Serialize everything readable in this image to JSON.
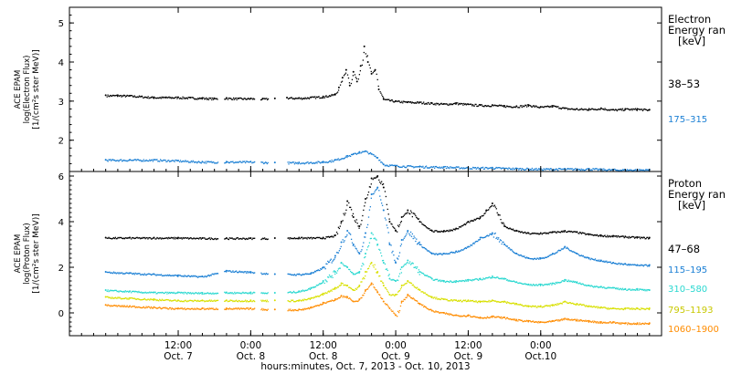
{
  "chart_data": [
    {
      "type": "scatter",
      "panel": "electron",
      "ylabel": [
        "ACE EPAM",
        "log(Electron Flux)",
        "[1/(cm²s ster MeV)]"
      ],
      "ylim": [
        1.2,
        5.4
      ],
      "yticks": [
        2,
        3,
        4,
        5
      ],
      "legend_title": [
        "Electron",
        "Energy ran",
        "[keV]"
      ],
      "series": [
        {
          "name": "38–53",
          "color": "#000000",
          "x": [
            0,
            2,
            4,
            6,
            8,
            10,
            12,
            14,
            16,
            18,
            20,
            22,
            24,
            26,
            28,
            30,
            32,
            34,
            36,
            38,
            38.6,
            39.2,
            39.8,
            40.4,
            41,
            41.6,
            42.2,
            42.8,
            43.4,
            44,
            44.6,
            45.2,
            46,
            48,
            50,
            52,
            54,
            56,
            58,
            60,
            62,
            64,
            66,
            68,
            70,
            72,
            74,
            76,
            78,
            80,
            82,
            84,
            86,
            88,
            90
          ],
          "y": [
            3.15,
            3.15,
            3.14,
            3.12,
            3.1,
            3.1,
            3.1,
            3.09,
            3.08,
            3.07,
            3.08,
            3.07,
            3.07,
            3.06,
            3.07,
            3.09,
            3.08,
            3.1,
            3.12,
            3.18,
            3.35,
            3.6,
            3.8,
            3.4,
            3.75,
            3.5,
            3.9,
            4.4,
            4.0,
            3.7,
            3.8,
            3.3,
            3.05,
            3.0,
            2.98,
            2.97,
            2.95,
            2.93,
            2.95,
            2.92,
            2.9,
            2.9,
            2.88,
            2.87,
            2.9,
            2.85,
            2.88,
            2.82,
            2.8,
            2.8,
            2.82,
            2.78,
            2.8,
            2.8,
            2.78
          ]
        },
        {
          "name": "175–315",
          "color": "#1a7fd4",
          "x": [
            0,
            4,
            8,
            12,
            16,
            20,
            24,
            28,
            32,
            36,
            38,
            40,
            41,
            42,
            43,
            44,
            45,
            46,
            48,
            52,
            56,
            60,
            64,
            68,
            72,
            76,
            80,
            84,
            88,
            90
          ],
          "y": [
            1.5,
            1.5,
            1.5,
            1.48,
            1.45,
            1.45,
            1.45,
            1.43,
            1.43,
            1.45,
            1.5,
            1.6,
            1.65,
            1.7,
            1.72,
            1.65,
            1.55,
            1.38,
            1.35,
            1.33,
            1.32,
            1.3,
            1.3,
            1.28,
            1.27,
            1.27,
            1.27,
            1.25,
            1.25,
            1.25
          ]
        }
      ]
    },
    {
      "type": "scatter",
      "panel": "proton",
      "ylabel": [
        "ACE EPAM",
        "log(Proton Flux)",
        "[1/(cm²s ster MeV)]"
      ],
      "ylim": [
        -1,
        6.2
      ],
      "yticks": [
        0,
        2,
        4,
        6
      ],
      "xticks": [
        "12:00",
        "0:00",
        "12:00",
        "0:00",
        "12:00",
        "0:00"
      ],
      "xticks_dates": [
        "Oct. 7",
        "Oct. 8",
        "Oct. 8",
        "Oct. 9",
        "Oct. 9",
        "Oct.10"
      ],
      "xlabel": "hours:minutes, Oct. 7, 2013 - Oct. 10, 2013",
      "legend_title": [
        "Proton",
        "Energy ran",
        "[keV]"
      ],
      "series": [
        {
          "name": "47–68",
          "color": "#000000",
          "x": [
            0,
            4,
            8,
            12,
            16,
            20,
            24,
            28,
            32,
            36,
            38,
            39,
            40,
            41,
            42,
            43,
            44,
            45,
            46,
            47,
            48,
            49,
            50,
            52,
            54,
            56,
            58,
            60,
            62,
            63,
            64,
            65,
            66,
            68,
            70,
            72,
            74,
            76,
            78,
            80,
            82,
            84,
            86,
            88,
            90
          ],
          "y": [
            3.3,
            3.3,
            3.3,
            3.3,
            3.28,
            3.28,
            3.28,
            3.28,
            3.3,
            3.3,
            3.4,
            4.0,
            4.9,
            4.2,
            3.8,
            5.0,
            5.9,
            6.0,
            5.5,
            4.0,
            3.6,
            4.2,
            4.5,
            4.0,
            3.6,
            3.6,
            3.7,
            4.0,
            4.2,
            4.5,
            4.8,
            4.3,
            3.8,
            3.6,
            3.5,
            3.5,
            3.55,
            3.6,
            3.55,
            3.45,
            3.4,
            3.38,
            3.35,
            3.32,
            3.3
          ]
        },
        {
          "name": "115–195",
          "color": "#1a7fd4",
          "x": [
            0,
            4,
            8,
            12,
            16,
            20,
            24,
            28,
            32,
            34,
            36,
            38,
            39,
            40,
            41,
            42,
            43,
            44,
            45,
            46,
            47,
            48,
            49,
            50,
            52,
            54,
            56,
            58,
            60,
            62,
            64,
            66,
            68,
            70,
            72,
            74,
            76,
            78,
            80,
            82,
            84,
            86,
            88,
            90
          ],
          "y": [
            1.8,
            1.75,
            1.7,
            1.65,
            1.6,
            1.85,
            1.8,
            1.7,
            1.7,
            1.75,
            2.0,
            2.5,
            3.1,
            3.6,
            3.0,
            2.6,
            3.5,
            5.2,
            5.5,
            4.5,
            3.0,
            2.2,
            3.2,
            3.6,
            3.0,
            2.6,
            2.6,
            2.7,
            2.9,
            3.3,
            3.5,
            3.0,
            2.6,
            2.4,
            2.4,
            2.6,
            2.9,
            2.6,
            2.4,
            2.3,
            2.2,
            2.15,
            2.1,
            2.1
          ]
        },
        {
          "name": "310–580",
          "color": "#2ad8d0",
          "x": [
            0,
            4,
            8,
            12,
            16,
            20,
            24,
            28,
            32,
            34,
            36,
            38,
            39,
            40,
            41,
            42,
            43,
            44,
            45,
            46,
            47,
            48,
            49,
            50,
            52,
            54,
            56,
            58,
            60,
            62,
            64,
            66,
            68,
            70,
            72,
            74,
            76,
            78,
            80,
            82,
            84,
            86,
            88,
            90
          ],
          "y": [
            1.0,
            0.95,
            0.9,
            0.9,
            0.88,
            0.9,
            0.9,
            0.88,
            0.95,
            1.1,
            1.4,
            1.8,
            2.2,
            2.0,
            1.7,
            1.8,
            2.6,
            3.5,
            3.0,
            2.2,
            1.5,
            1.4,
            2.0,
            2.3,
            1.8,
            1.5,
            1.4,
            1.4,
            1.45,
            1.5,
            1.6,
            1.5,
            1.35,
            1.25,
            1.25,
            1.3,
            1.45,
            1.35,
            1.2,
            1.15,
            1.1,
            1.05,
            1.05,
            1.0
          ]
        },
        {
          "name": "795–1193",
          "color": "#d8e000",
          "x": [
            0,
            4,
            8,
            12,
            16,
            20,
            24,
            28,
            32,
            34,
            36,
            38,
            39,
            40,
            41,
            42,
            43,
            44,
            45,
            46,
            47,
            48,
            49,
            50,
            52,
            54,
            56,
            58,
            60,
            62,
            64,
            66,
            68,
            70,
            72,
            74,
            76,
            78,
            80,
            82,
            84,
            86,
            88,
            90
          ],
          "y": [
            0.7,
            0.65,
            0.6,
            0.55,
            0.55,
            0.55,
            0.55,
            0.55,
            0.55,
            0.65,
            0.85,
            1.1,
            1.3,
            1.2,
            1.0,
            1.2,
            1.8,
            2.2,
            1.8,
            1.2,
            0.8,
            0.8,
            1.2,
            1.4,
            1.0,
            0.7,
            0.6,
            0.55,
            0.55,
            0.5,
            0.55,
            0.5,
            0.4,
            0.3,
            0.3,
            0.35,
            0.5,
            0.4,
            0.3,
            0.25,
            0.2,
            0.2,
            0.2,
            0.2
          ]
        },
        {
          "name": "1060–1900",
          "color": "#ff8c00",
          "x": [
            0,
            4,
            8,
            12,
            16,
            20,
            24,
            28,
            32,
            34,
            36,
            38,
            39,
            40,
            41,
            42,
            43,
            44,
            45,
            46,
            47,
            48,
            49,
            50,
            52,
            54,
            56,
            58,
            60,
            62,
            64,
            66,
            68,
            70,
            72,
            74,
            76,
            78,
            80,
            82,
            84,
            86,
            88,
            90
          ],
          "y": [
            0.35,
            0.3,
            0.25,
            0.2,
            0.2,
            0.2,
            0.2,
            0.15,
            0.15,
            0.25,
            0.45,
            0.6,
            0.75,
            0.7,
            0.5,
            0.6,
            1.0,
            1.3,
            0.9,
            0.5,
            0.2,
            -0.1,
            0.5,
            0.8,
            0.4,
            0.1,
            0.0,
            -0.1,
            -0.1,
            -0.2,
            -0.15,
            -0.2,
            -0.3,
            -0.35,
            -0.4,
            -0.35,
            -0.25,
            -0.3,
            -0.35,
            -0.4,
            -0.4,
            -0.45,
            -0.45,
            -0.45
          ]
        }
      ]
    }
  ]
}
